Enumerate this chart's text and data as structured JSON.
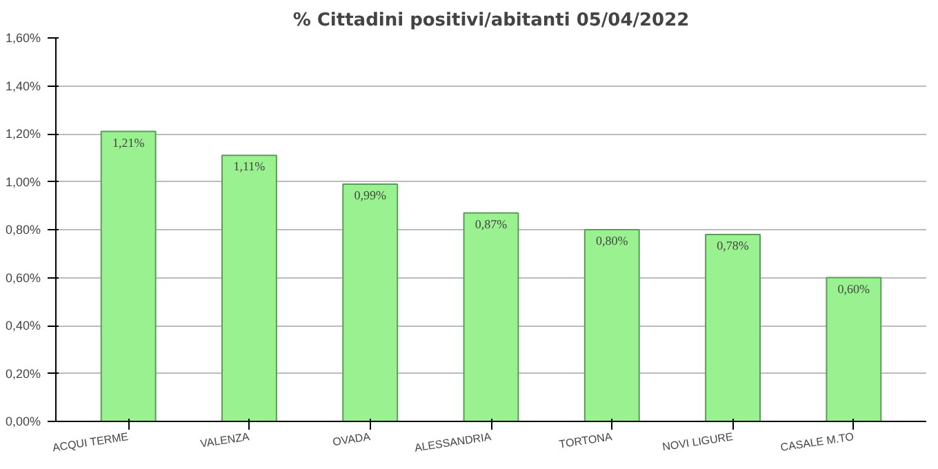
{
  "chart_data": {
    "type": "bar",
    "title": "% Cittadini positivi/abitanti 05/04/2022",
    "categories": [
      "ACQUI TERME",
      "VALENZA",
      "OVADA",
      "ALESSANDRIA",
      "TORTONA",
      "NOVI LIGURE",
      "CASALE M.TO"
    ],
    "values": [
      1.21,
      1.11,
      0.99,
      0.87,
      0.8,
      0.78,
      0.6
    ],
    "value_labels": [
      "1,21%",
      "1,11%",
      "0,99%",
      "0,87%",
      "0,80%",
      "0,78%",
      "0,60%"
    ],
    "color": "#99f28f",
    "ylim": [
      0,
      1.6
    ],
    "yticks": [
      {
        "value": 0,
        "label": "0,00%"
      },
      {
        "value": 0.2,
        "label": "0,20%"
      },
      {
        "value": 0.4,
        "label": "0,40%"
      },
      {
        "value": 0.6,
        "label": "0,60%"
      },
      {
        "value": 0.8,
        "label": "0,80%"
      },
      {
        "value": 1.0,
        "label": "1,00%"
      },
      {
        "value": 1.2,
        "label": "1,20%"
      },
      {
        "value": 1.4,
        "label": "1,40%"
      },
      {
        "value": 1.6,
        "label": "1,60%"
      }
    ],
    "grid": "y"
  }
}
